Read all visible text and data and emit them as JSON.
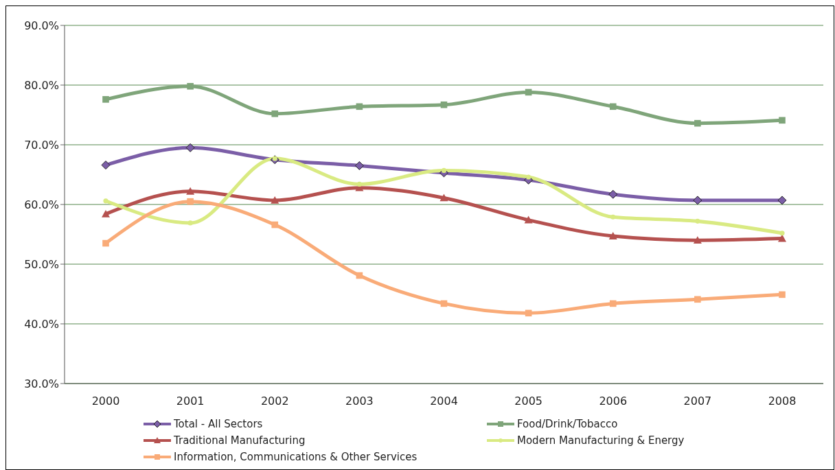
{
  "chart_data": {
    "type": "line",
    "categories": [
      "2000",
      "2001",
      "2002",
      "2003",
      "2004",
      "2005",
      "2006",
      "2007",
      "2008"
    ],
    "series": [
      {
        "name": "Total - All Sectors",
        "color": "#7b5ea7",
        "marker": "diamond",
        "values": [
          66.6,
          69.5,
          67.5,
          66.5,
          65.3,
          64.1,
          61.7,
          60.7,
          60.7
        ]
      },
      {
        "name": "Food/Drink/Tobacco",
        "color": "#7fa57a",
        "marker": "square",
        "values": [
          77.6,
          79.8,
          75.2,
          76.4,
          76.7,
          78.8,
          76.4,
          73.6,
          74.1
        ]
      },
      {
        "name": "Traditional Manufacturing",
        "color": "#b5514f",
        "marker": "triangle",
        "values": [
          58.4,
          62.2,
          60.7,
          62.8,
          61.1,
          57.4,
          54.7,
          54.0,
          54.3
        ]
      },
      {
        "name": "Modern Manufacturing & Energy",
        "color": "#d9ea82",
        "marker": "circle",
        "values": [
          60.6,
          56.9,
          67.7,
          63.4,
          65.7,
          64.6,
          57.9,
          57.2,
          55.2
        ]
      },
      {
        "name": "Information, Communications & Other Services",
        "color": "#f9ab78",
        "marker": "square",
        "values": [
          53.5,
          60.5,
          56.6,
          48.1,
          43.4,
          41.8,
          43.4,
          44.1,
          44.9
        ]
      }
    ],
    "ylim": [
      30,
      90
    ],
    "yticks": [
      {
        "value": 30,
        "label": "30.0%"
      },
      {
        "value": 40,
        "label": "40.0%"
      },
      {
        "value": 50,
        "label": "50.0%"
      },
      {
        "value": 60,
        "label": "60.0%"
      },
      {
        "value": 70,
        "label": "70.0%"
      },
      {
        "value": 80,
        "label": "80.0%"
      },
      {
        "value": 90,
        "label": "90.0%"
      }
    ],
    "grid": "y",
    "legend": "bottom",
    "line_style": "solid"
  }
}
